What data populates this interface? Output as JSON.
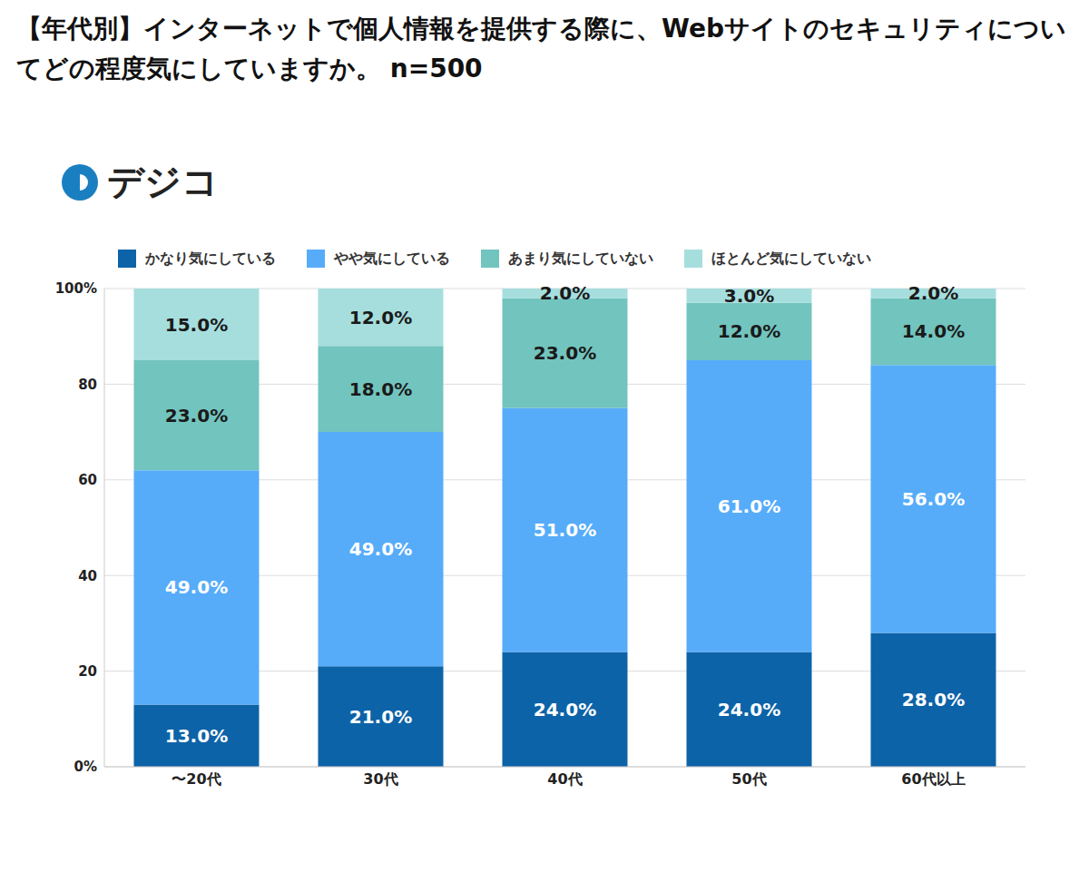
{
  "chart_data": {
    "type": "bar",
    "title": "【年代別】インターネットで個人情報を提供する際に、Webサイトのセキュリティについてどの程度気にしていますか。 n=500",
    "annotations": [
      "デジコ"
    ],
    "stacked": true,
    "data_labels": true,
    "grid": true,
    "legend": "top-left",
    "categories": [
      "〜20代",
      "30代",
      "40代",
      "50代",
      "60代以上"
    ],
    "ylim": [
      0,
      100
    ],
    "yticks": [
      {
        "value": 0,
        "label": "0%"
      },
      20,
      40,
      60,
      80,
      {
        "value": 100,
        "label": "100%"
      }
    ],
    "series": [
      {
        "name": "かなり気にしている",
        "color": "#0d63a8",
        "values": [
          13,
          21,
          24,
          24,
          28
        ],
        "value_labels": [
          "13.0%",
          "21.0%",
          "24.0%",
          "24.0%",
          "28.0%"
        ]
      },
      {
        "name": "やや気にしている",
        "color": "#56acf9",
        "values": [
          49,
          49,
          51,
          61,
          56
        ],
        "value_labels": [
          "49.0%",
          "49.0%",
          "51.0%",
          "61.0%",
          "56.0%"
        ]
      },
      {
        "name": "あまり気にしていない",
        "color": "#72c4be",
        "values": [
          23,
          18,
          23,
          12,
          14
        ],
        "value_labels": [
          "23.0%",
          "18.0%",
          "23.0%",
          "12.0%",
          "14.0%"
        ]
      },
      {
        "name": "ほとんど気にしていない",
        "color": "#a6dede",
        "values": [
          15,
          12,
          2,
          3,
          2
        ],
        "value_labels": [
          "15.0%",
          "12.0%",
          "2.0%",
          "3.0%",
          "2.0%"
        ]
      }
    ]
  }
}
